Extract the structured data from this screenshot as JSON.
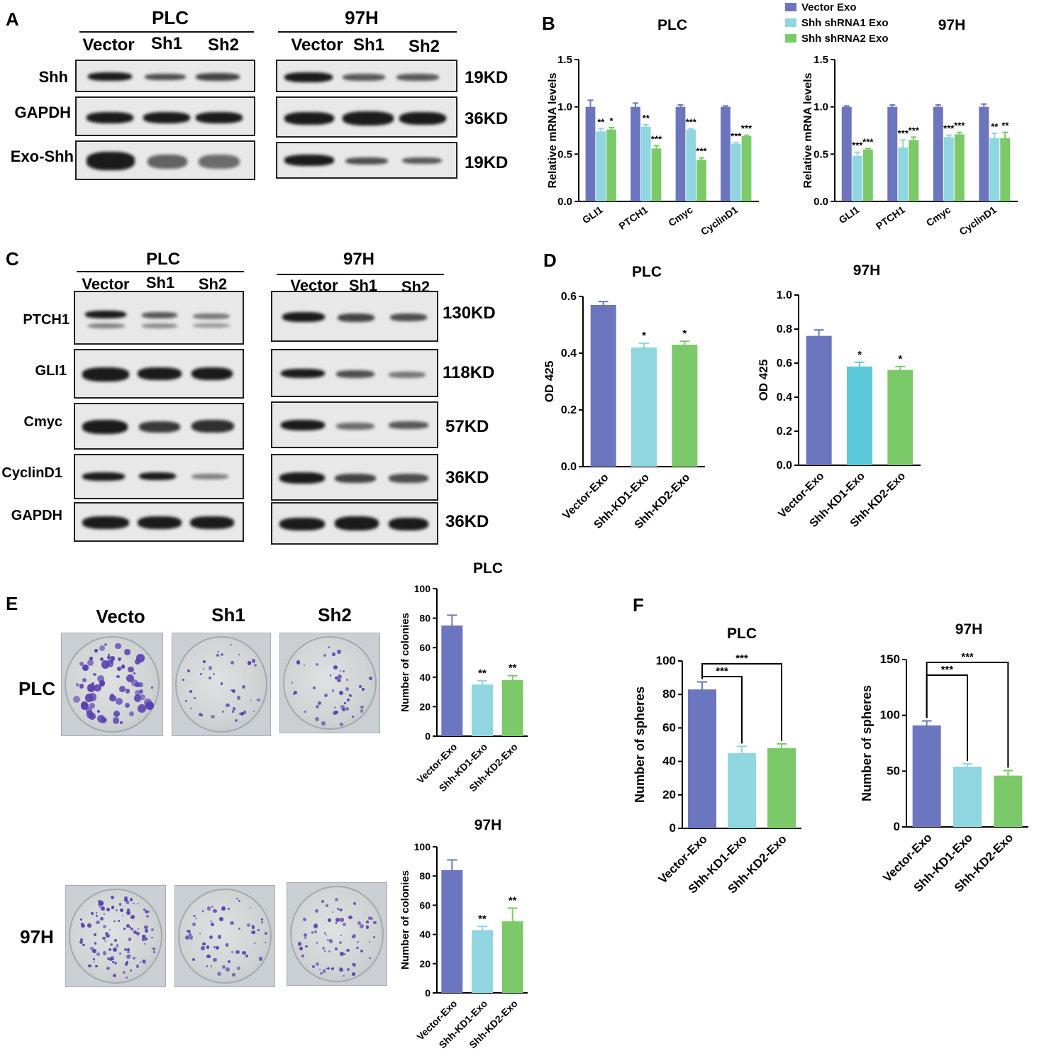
{
  "panels": {
    "A": {
      "letter": "A",
      "groups": [
        {
          "title": "PLC",
          "lanes": [
            "Vector",
            "Sh1",
            "Sh2"
          ]
        },
        {
          "title": "97H",
          "lanes": [
            "Vector",
            "Sh1",
            "Sh2"
          ]
        }
      ],
      "rows": [
        {
          "label": "Shh",
          "kd": "19KD"
        },
        {
          "label": "GAPDH",
          "kd": "36KD"
        },
        {
          "label": "Exo-Shh",
          "kd": "19KD"
        }
      ]
    },
    "B": {
      "letter": "B"
    },
    "C": {
      "letter": "C",
      "groups": [
        {
          "title": "PLC",
          "lanes": [
            "Vector",
            "Sh1",
            "Sh2"
          ]
        },
        {
          "title": "97H",
          "lanes": [
            "Vector",
            "Sh1",
            "Sh2"
          ]
        }
      ],
      "rows": [
        {
          "label": "PTCH1",
          "kd": "130KD"
        },
        {
          "label": "GLI1",
          "kd": "118KD"
        },
        {
          "label": "Cmyc",
          "kd": "57KD"
        },
        {
          "label": "CyclinD1",
          "kd": "36KD"
        },
        {
          "label": "GAPDH",
          "kd": "36KD"
        }
      ]
    },
    "D": {
      "letter": "D"
    },
    "E": {
      "letter": "E",
      "columns": [
        "Vecto",
        "Sh1",
        "Sh2"
      ],
      "rows": [
        "PLC",
        "97H"
      ]
    },
    "F": {
      "letter": "F"
    }
  },
  "colors": {
    "vector": "#6b76bf",
    "sh1": "#8fd6e0",
    "sh2": "#7cc96a",
    "sh1_alt": "#5cc8dc"
  },
  "chart_data": [
    {
      "id": "B-PLC",
      "type": "bar",
      "title": "PLC",
      "ylabel": "Relative mRNA levels",
      "ylim": [
        0,
        1.5
      ],
      "yticks": [
        "0.0",
        "0.5",
        "1.0",
        "1.5"
      ],
      "categories": [
        "GLI1",
        "PTCH1",
        "Cmyc",
        "CyclinD1"
      ],
      "series": [
        {
          "name": "Vector Exo",
          "values": [
            1.0,
            1.0,
            1.0,
            1.0
          ],
          "errors": [
            0.07,
            0.04,
            0.02,
            0.01
          ],
          "color": "#6b76bf"
        },
        {
          "name": "Shh shRNA1 Exo",
          "values": [
            0.74,
            0.79,
            0.76,
            0.61
          ],
          "errors": [
            0.03,
            0.02,
            0.01,
            0.01
          ],
          "color": "#8fd6e0"
        },
        {
          "name": "Shh shRNA2 Exo",
          "values": [
            0.76,
            0.56,
            0.44,
            0.69
          ],
          "errors": [
            0.02,
            0.03,
            0.02,
            0.01
          ],
          "color": "#7cc96a"
        }
      ],
      "annotations": [
        [
          "**",
          "*"
        ],
        [
          "**",
          "***"
        ],
        [
          "***",
          "***"
        ],
        [
          "***",
          "***"
        ]
      ]
    },
    {
      "id": "B-97H",
      "type": "bar",
      "title": "97H",
      "ylabel": "Relative mRNA levels",
      "ylim": [
        0,
        1.5
      ],
      "yticks": [
        "0.0",
        "0.5",
        "1.0",
        "1.5"
      ],
      "categories": [
        "GLI1",
        "PTCH1",
        "Cmyc",
        "CyclinD1"
      ],
      "series": [
        {
          "name": "Vector Exo",
          "values": [
            1.0,
            1.0,
            1.0,
            1.0
          ],
          "errors": [
            0.01,
            0.02,
            0.02,
            0.03
          ],
          "color": "#6b76bf"
        },
        {
          "name": "Shh shRNA1 Exo",
          "values": [
            0.48,
            0.57,
            0.68,
            0.67
          ],
          "errors": [
            0.04,
            0.08,
            0.02,
            0.05
          ],
          "color": "#8fd6e0"
        },
        {
          "name": "Shh shRNA2 Exo",
          "values": [
            0.55,
            0.65,
            0.71,
            0.67
          ],
          "errors": [
            0.01,
            0.03,
            0.02,
            0.06
          ],
          "color": "#7cc96a"
        }
      ],
      "annotations": [
        [
          "***",
          "***"
        ],
        [
          "***",
          "***"
        ],
        [
          "***",
          "***"
        ],
        [
          "**",
          "**"
        ]
      ]
    },
    {
      "id": "D-PLC",
      "type": "bar",
      "title": "PLC",
      "ylabel": "OD 425",
      "ylim": [
        0,
        0.6
      ],
      "yticks": [
        "0.0",
        "0.2",
        "0.4",
        "0.6"
      ],
      "categories": [
        "Vector-Exo",
        "Shh-KD1-Exo",
        "Shh-KD2-Exo"
      ],
      "values": [
        0.57,
        0.42,
        0.43
      ],
      "errors": [
        0.012,
        0.015,
        0.012
      ],
      "colors": [
        "#6b76bf",
        "#8fd6e0",
        "#7cc96a"
      ],
      "annotations": [
        "",
        "*",
        "*"
      ]
    },
    {
      "id": "D-97H",
      "type": "bar",
      "title": "97H",
      "ylabel": "OD 425",
      "ylim": [
        0,
        1.0
      ],
      "yticks": [
        "0.0",
        "0.2",
        "0.4",
        "0.6",
        "0.8",
        "1.0"
      ],
      "categories": [
        "Vector-Exo",
        "Shh-KD1-Exo",
        "Shh-KD2-Exo"
      ],
      "values": [
        0.76,
        0.58,
        0.56
      ],
      "errors": [
        0.035,
        0.025,
        0.02
      ],
      "colors": [
        "#6b76bf",
        "#5cc8dc",
        "#7cc96a"
      ],
      "annotations": [
        "",
        "*",
        "*"
      ]
    },
    {
      "id": "E-PLC",
      "type": "bar",
      "title": "PLC",
      "ylabel": "Number of colonies",
      "ylim": [
        0,
        100
      ],
      "yticks": [
        "0",
        "20",
        "40",
        "60",
        "80",
        "100"
      ],
      "categories": [
        "Vector-Exo",
        "Shh-KD1-Exo",
        "Shh-KD2-Exo"
      ],
      "values": [
        75,
        35,
        38
      ],
      "errors": [
        7,
        2.5,
        3
      ],
      "colors": [
        "#6b76bf",
        "#8fd6e0",
        "#7cc96a"
      ],
      "annotations": [
        "",
        "**",
        "**"
      ]
    },
    {
      "id": "E-97H",
      "type": "bar",
      "title": "97H",
      "ylabel": "Number of colonies",
      "ylim": [
        0,
        100
      ],
      "yticks": [
        "0",
        "20",
        "40",
        "60",
        "80",
        "100"
      ],
      "categories": [
        "Vector-Exo",
        "Shh-KD1-Exo",
        "Shh-KD2-Exo"
      ],
      "values": [
        84,
        43,
        49
      ],
      "errors": [
        7,
        2.5,
        9
      ],
      "colors": [
        "#6b76bf",
        "#8fd6e0",
        "#7cc96a"
      ],
      "annotations": [
        "",
        "**",
        "**"
      ]
    },
    {
      "id": "F-PLC",
      "type": "bar",
      "title": "PLC",
      "ylabel": "Number of spheres",
      "ylim": [
        0,
        100
      ],
      "yticks": [
        "0",
        "20",
        "40",
        "60",
        "80",
        "100"
      ],
      "categories": [
        "Vector-Exo",
        "Shh-KD1-Exo",
        "Shh-KD2-Exo"
      ],
      "values": [
        83,
        45,
        48
      ],
      "errors": [
        4.5,
        4,
        2.5
      ],
      "colors": [
        "#6b76bf",
        "#8fd6e0",
        "#7cc96a"
      ],
      "brackets": [
        {
          "from": 0,
          "to": 1,
          "label": "***"
        },
        {
          "from": 0,
          "to": 2,
          "label": "***"
        }
      ]
    },
    {
      "id": "F-97H",
      "type": "bar",
      "title": "97H",
      "ylabel": "Number of spheres",
      "ylim": [
        0,
        150
      ],
      "yticks": [
        "0",
        "50",
        "100",
        "150"
      ],
      "categories": [
        "Vector-Exo",
        "Shh-KD1-Exo",
        "Shh-KD2-Exo"
      ],
      "values": [
        91,
        54,
        46
      ],
      "errors": [
        4,
        2.5,
        4.5
      ],
      "colors": [
        "#6b76bf",
        "#8fd6e0",
        "#7cc96a"
      ],
      "brackets": [
        {
          "from": 0,
          "to": 1,
          "label": "***"
        },
        {
          "from": 0,
          "to": 2,
          "label": "***"
        }
      ]
    }
  ]
}
